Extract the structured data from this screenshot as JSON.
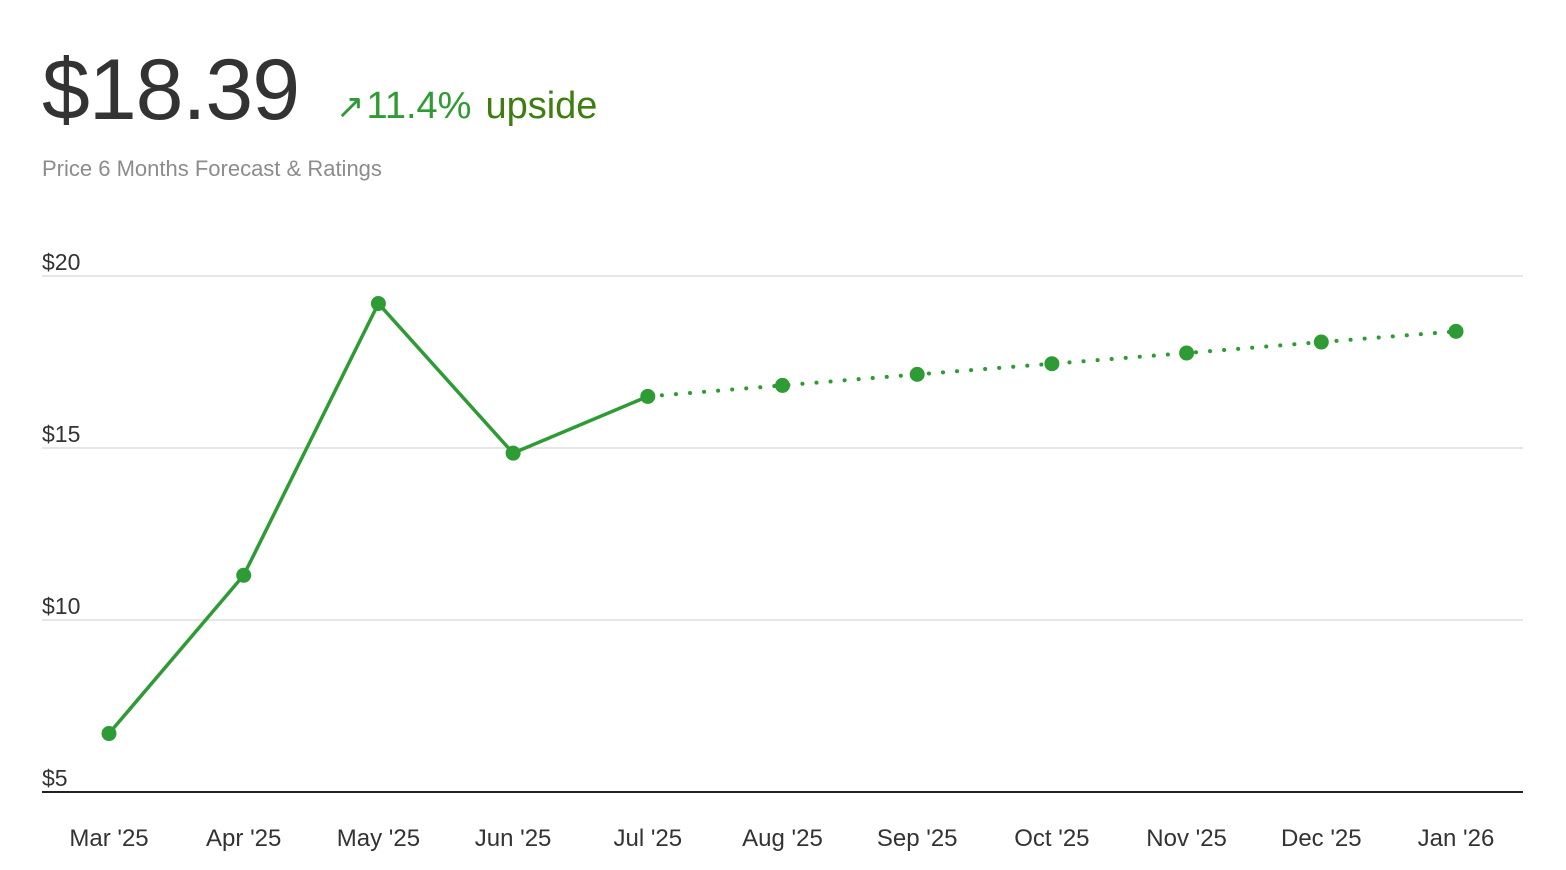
{
  "header": {
    "price": "$18.39",
    "change_arrow": "↗",
    "change_pct": "11.4%",
    "change_label": "upside",
    "subtitle": "Price 6 Months Forecast & Ratings"
  },
  "colors": {
    "price_text": "#333333",
    "accent_green": "#2e9b34",
    "upside_green": "#3e7d10",
    "subtitle_gray": "#8c8c8c",
    "gridline": "#dddddd",
    "axis": "#222222"
  },
  "chart_data": {
    "type": "line",
    "title": "",
    "xlabel": "",
    "ylabel": "",
    "categories": [
      "Mar '25",
      "Apr '25",
      "May '25",
      "Jun '25",
      "Jul '25",
      "Aug '25",
      "Sep '25",
      "Oct '25",
      "Nov '25",
      "Dec '25",
      "Jan '26"
    ],
    "y_ticks": [
      {
        "value": 5,
        "label": "$5"
      },
      {
        "value": 10,
        "label": "$10"
      },
      {
        "value": 15,
        "label": "$15"
      },
      {
        "value": 20,
        "label": "$20"
      }
    ],
    "ylim": [
      5,
      20
    ],
    "grid": true,
    "series": [
      {
        "style": "solid",
        "color": "#2e9b34",
        "points": [
          {
            "x": "Mar '25",
            "y": 6.7
          },
          {
            "x": "Apr '25",
            "y": 11.3
          },
          {
            "x": "May '25",
            "y": 19.2
          },
          {
            "x": "Jun '25",
            "y": 14.85
          },
          {
            "x": "Jul '25",
            "y": 16.5
          }
        ]
      },
      {
        "style": "dotted",
        "color": "#2e9b34",
        "points": [
          {
            "x": "Jul '25",
            "y": 16.5
          },
          {
            "x": "Aug '25",
            "y": 16.82
          },
          {
            "x": "Sep '25",
            "y": 17.14
          },
          {
            "x": "Oct '25",
            "y": 17.45
          },
          {
            "x": "Nov '25",
            "y": 17.76
          },
          {
            "x": "Dec '25",
            "y": 18.08
          },
          {
            "x": "Jan '26",
            "y": 18.39
          }
        ]
      }
    ]
  }
}
